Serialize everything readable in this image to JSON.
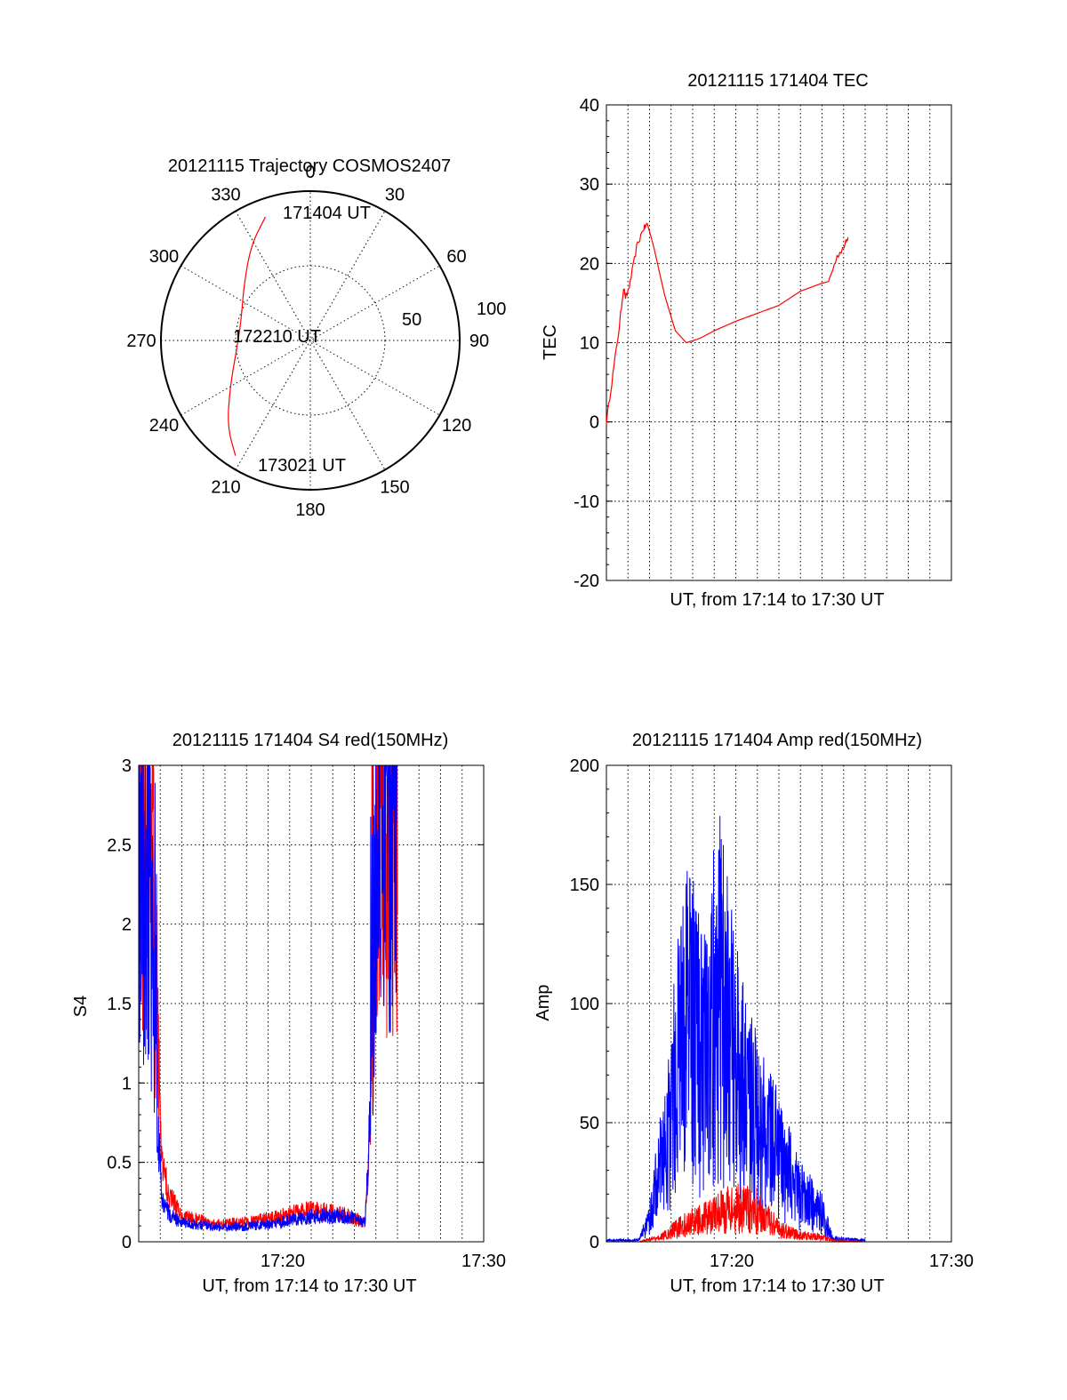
{
  "colors": {
    "red": "#ff0000",
    "blue": "#0000ff",
    "axis": "#000000",
    "grid": "#000000"
  },
  "chart_data": [
    {
      "id": "polar",
      "type": "polar-trajectory",
      "title": "20121115 Trajectory COSMOS2407",
      "azimuth_labels": [
        "0",
        "30",
        "60",
        "90",
        "120",
        "150",
        "180",
        "210",
        "240",
        "270",
        "300",
        "330"
      ],
      "radial_labels": [
        "50",
        "100"
      ],
      "rlim": [
        0,
        100
      ],
      "grid": true,
      "trajectory": [
        {
          "az": 340,
          "r": 88
        },
        {
          "az": 328,
          "r": 75
        },
        {
          "az": 310,
          "r": 58
        },
        {
          "az": 285,
          "r": 48
        },
        {
          "az": 262,
          "r": 50
        },
        {
          "az": 240,
          "r": 62
        },
        {
          "az": 224,
          "r": 80
        },
        {
          "az": 213,
          "r": 92
        }
      ],
      "annotations": [
        "171404 UT",
        "172210 UT",
        "173021 UT"
      ]
    },
    {
      "id": "tec",
      "type": "line",
      "title": "20121115 171404 TEC",
      "xlabel": "UT, from 17:14 to 17:30 UT",
      "ylabel": "TEC",
      "xlim": [
        17.2333,
        17.5
      ],
      "ylim": [
        -20,
        40
      ],
      "yticks": [
        "40",
        "30",
        "20",
        "10",
        "0",
        "-10",
        "-20"
      ],
      "grid": true,
      "series": [
        {
          "color": "red",
          "points": [
            [
              17.2333,
              0
            ],
            [
              17.2383,
              6
            ],
            [
              17.2433,
              12
            ],
            [
              17.2466,
              17
            ],
            [
              17.2483,
              15.5
            ],
            [
              17.2516,
              17.5
            ],
            [
              17.2566,
              22
            ],
            [
              17.2616,
              24.3
            ],
            [
              17.265,
              25
            ],
            [
              17.27,
              22
            ],
            [
              17.2783,
              16
            ],
            [
              17.2866,
              11.5
            ],
            [
              17.295,
              10
            ],
            [
              17.305,
              10.5
            ],
            [
              17.3166,
              11.5
            ],
            [
              17.3333,
              12.7
            ],
            [
              17.35,
              13.7
            ],
            [
              17.3666,
              14.7
            ],
            [
              17.3833,
              16.5
            ],
            [
              17.4,
              17.5
            ],
            [
              17.405,
              17.7
            ],
            [
              17.4116,
              20.8
            ],
            [
              17.418,
              22.5
            ],
            [
              17.42,
              23.3
            ]
          ]
        }
      ]
    },
    {
      "id": "s4",
      "type": "line",
      "title": "20121115 171404 S4 red(150MHz)",
      "xlabel": "UT, from 17:14 to 17:30 UT",
      "ylabel": "S4",
      "xlim": [
        17.2333,
        17.5
      ],
      "ylim": [
        0,
        3
      ],
      "yticks": [
        "3",
        "2.5",
        "2",
        "1.5",
        "1",
        "0.5",
        "0"
      ],
      "xticks": [
        "17:20",
        "17:30"
      ],
      "grid": true,
      "series": [
        {
          "color": "red",
          "envelope": [
            [
              17.2333,
              2.3
            ],
            [
              17.2417,
              2.3
            ],
            [
              17.245,
              1.7
            ],
            [
              17.2517,
              0.55
            ],
            [
              17.2583,
              0.35
            ],
            [
              17.2667,
              0.2
            ],
            [
              17.2917,
              0.14
            ],
            [
              17.3167,
              0.15
            ],
            [
              17.3417,
              0.2
            ],
            [
              17.3667,
              0.25
            ],
            [
              17.3917,
              0.22
            ],
            [
              17.4083,
              0.15
            ],
            [
              17.4183,
              2.1
            ],
            [
              17.4333,
              2.3
            ]
          ]
        },
        {
          "color": "blue",
          "envelope": [
            [
              17.2333,
              1.9
            ],
            [
              17.2417,
              1.9
            ],
            [
              17.245,
              1.4
            ],
            [
              17.2517,
              0.3
            ],
            [
              17.2583,
              0.2
            ],
            [
              17.2667,
              0.15
            ],
            [
              17.2917,
              0.12
            ],
            [
              17.3167,
              0.12
            ],
            [
              17.3417,
              0.15
            ],
            [
              17.3667,
              0.2
            ],
            [
              17.3917,
              0.2
            ],
            [
              17.4083,
              0.15
            ],
            [
              17.4183,
              2.2
            ],
            [
              17.4333,
              2.5
            ]
          ]
        }
      ]
    },
    {
      "id": "amp",
      "type": "line",
      "title": "20121115 171404 Amp red(150MHz)",
      "xlabel": "UT, from 17:14 to 17:30 UT",
      "ylabel": "Amp",
      "xlim": [
        17.2333,
        17.5
      ],
      "ylim": [
        0,
        200
      ],
      "yticks": [
        "200",
        "150",
        "100",
        "50",
        "0"
      ],
      "xticks": [
        "17:20",
        "17:30"
      ],
      "grid": true,
      "series": [
        {
          "color": "blue",
          "envelope": [
            [
              17.2333,
              1
            ],
            [
              17.2583,
              1
            ],
            [
              17.2667,
              15
            ],
            [
              17.28,
              65
            ],
            [
              17.295,
              150
            ],
            [
              17.3083,
              110
            ],
            [
              17.32,
              160
            ],
            [
              17.3333,
              110
            ],
            [
              17.35,
              75
            ],
            [
              17.3667,
              55
            ],
            [
              17.3833,
              30
            ],
            [
              17.4,
              18
            ],
            [
              17.4083,
              2
            ],
            [
              17.4333,
              1
            ]
          ]
        },
        {
          "color": "red",
          "envelope": [
            [
              17.2333,
              0
            ],
            [
              17.2583,
              0
            ],
            [
              17.275,
              3
            ],
            [
              17.2917,
              10
            ],
            [
              17.3083,
              15
            ],
            [
              17.3333,
              22
            ],
            [
              17.35,
              20
            ],
            [
              17.3667,
              8
            ],
            [
              17.3833,
              4
            ],
            [
              17.4,
              3
            ],
            [
              17.4083,
              1
            ],
            [
              17.4333,
              0
            ]
          ]
        }
      ]
    }
  ]
}
